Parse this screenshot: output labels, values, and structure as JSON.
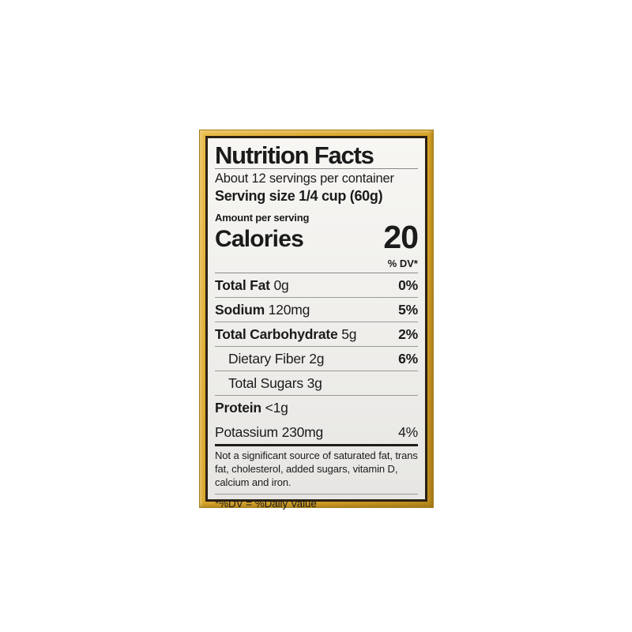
{
  "label": {
    "title": "Nutrition Facts",
    "servings_per_container": "About 12 servings per container",
    "serving_size_line": "Serving size 1/4 cup (60g)",
    "amount_per_serving": "Amount per serving",
    "calories_label": "Calories",
    "calories_value": "20",
    "dv_header": "% DV*",
    "rows": [
      {
        "name": "Total Fat",
        "amount": "0g",
        "dv": "0%"
      },
      {
        "name": "Sodium",
        "amount": "120mg",
        "dv": "5%"
      },
      {
        "name": "Total Carbohydrate",
        "amount": "5g",
        "dv": "2%"
      },
      {
        "name": "Dietary Fiber",
        "amount": "2g",
        "dv": "6%"
      },
      {
        "name": "Total Sugars",
        "amount": "3g",
        "dv": ""
      },
      {
        "name": "Protein",
        "amount": "<1g",
        "dv": ""
      }
    ],
    "potassium": {
      "name": "Potassium",
      "amount": "230mg",
      "dv": "4%"
    },
    "footnote": "Not a significant source of saturated fat, trans fat, cholesterol, added sugars, vitamin D, calcium and iron.",
    "dv_definition": "*%DV = %Daily Value"
  },
  "colors": {
    "package_gold": "#dca92f",
    "label_rim": "#2b2114",
    "label_background": "#f2f1ee",
    "text": "#1b1b1b"
  }
}
